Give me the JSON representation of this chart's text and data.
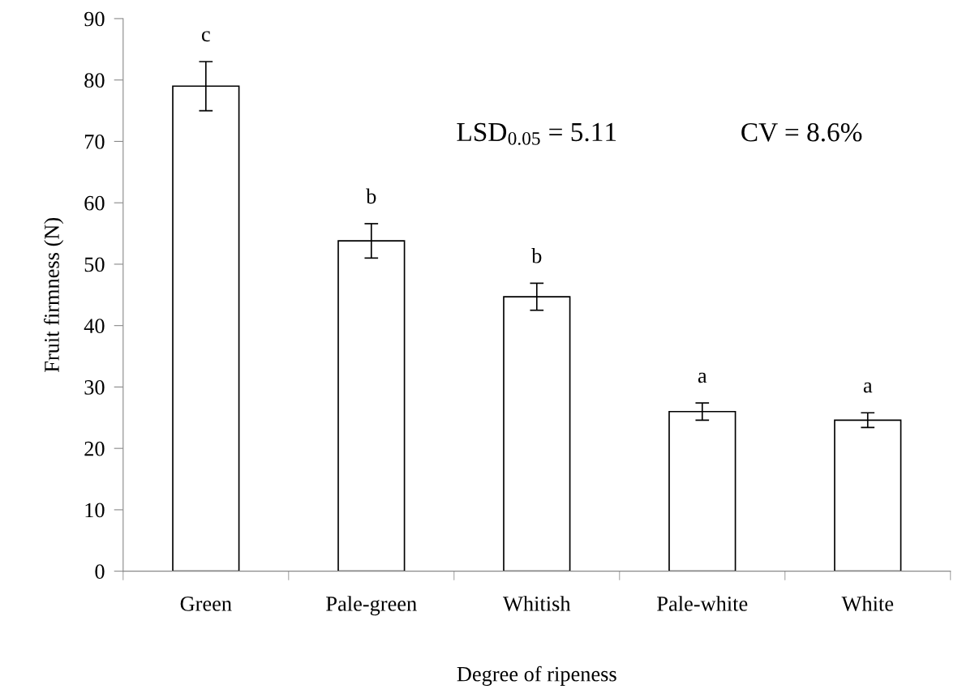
{
  "chart_data": {
    "type": "bar",
    "xlabel": "Degree of ripeness",
    "ylabel": "Fruit firmness (N)",
    "categories": [
      "Green",
      "Pale-green",
      "Whitish",
      "Pale-white",
      "White"
    ],
    "values": [
      79,
      53.8,
      44.7,
      26.0,
      24.6
    ],
    "errors": [
      4,
      2.8,
      2.2,
      1.4,
      1.2
    ],
    "color": "#ffffff",
    "ylim": [
      0,
      90
    ],
    "yticks": [
      0,
      10,
      20,
      30,
      40,
      50,
      60,
      70,
      80,
      90
    ],
    "grid": false,
    "legend": false,
    "annotations": [
      "c",
      "b",
      "b",
      "a",
      "a",
      "LSD$_{0.05}$ = 5.11",
      "CV = 8.6%"
    ]
  }
}
